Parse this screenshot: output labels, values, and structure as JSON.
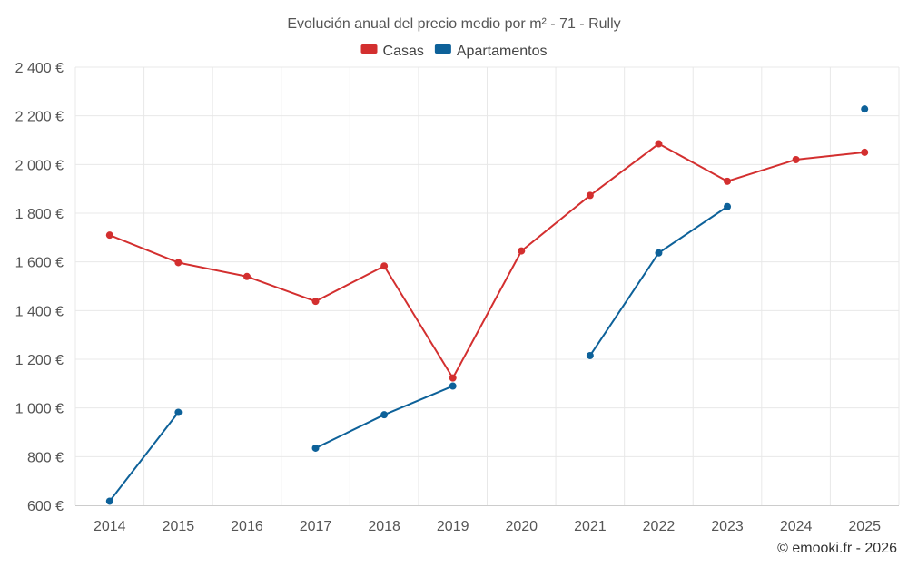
{
  "chart_data": {
    "type": "line",
    "title": "Evolución anual del precio medio por m² - 71 - Rully",
    "xlabel": "",
    "ylabel": "",
    "categories": [
      "2014",
      "2015",
      "2016",
      "2017",
      "2018",
      "2019",
      "2020",
      "2021",
      "2022",
      "2023",
      "2024",
      "2025"
    ],
    "ylim": [
      600,
      2400
    ],
    "yticks": [
      600,
      800,
      1000,
      1200,
      1400,
      1600,
      1800,
      2000,
      2200,
      2400
    ],
    "ytick_labels": [
      "600 €",
      "800 €",
      "1 000 €",
      "1 200 €",
      "1 400 €",
      "1 600 €",
      "1 800 €",
      "2 000 €",
      "2 200 €",
      "2 400 €"
    ],
    "grid": true,
    "legend_position": "top-center",
    "series": [
      {
        "name": "Casas",
        "color": "#d32f2f",
        "values": [
          1710,
          1597,
          1540,
          1438,
          1583,
          1123,
          1645,
          1873,
          2085,
          1931,
          2020,
          2050
        ]
      },
      {
        "name": "Apartamentos",
        "color": "#0d6199",
        "values": [
          617,
          982,
          null,
          835,
          972,
          1090,
          null,
          1215,
          1637,
          1827,
          null,
          2228
        ]
      }
    ]
  },
  "credit": "© emooki.fr - 2026"
}
